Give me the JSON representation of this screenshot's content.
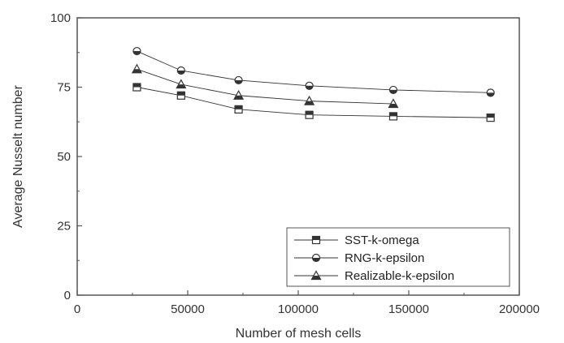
{
  "chart_data": {
    "type": "line",
    "title": "",
    "xlabel": "Number of mesh cells",
    "ylabel": "Average Nusselt number",
    "xlim": [
      0,
      200000
    ],
    "ylim": [
      0,
      100
    ],
    "xticks": [
      0,
      50000,
      100000,
      150000,
      200000
    ],
    "xtick_labels": [
      "0",
      "50000",
      "100000",
      "150000",
      "200000"
    ],
    "yticks": [
      0,
      25,
      50,
      75,
      100
    ],
    "ytick_labels": [
      "0",
      "25",
      "50",
      "75",
      "100"
    ],
    "grid": false,
    "legend": "bottom-right",
    "series": [
      {
        "name": "SST-k-omega",
        "marker": "square",
        "color": "#333333",
        "x": [
          27000,
          47000,
          73000,
          105000,
          143000,
          187000
        ],
        "y": [
          75,
          72,
          67,
          65,
          64.5,
          64
        ]
      },
      {
        "name": "RNG-k-epsilon",
        "marker": "half-circle",
        "color": "#333333",
        "x": [
          27000,
          47000,
          73000,
          105000,
          143000,
          187000
        ],
        "y": [
          88,
          81,
          77.5,
          75.5,
          74,
          73
        ]
      },
      {
        "name": "Realizable-k-epsilon",
        "marker": "triangle",
        "color": "#333333",
        "x": [
          27000,
          47000,
          73000,
          105000,
          143000
        ],
        "y": [
          81.5,
          76,
          72,
          70,
          69
        ]
      }
    ]
  }
}
